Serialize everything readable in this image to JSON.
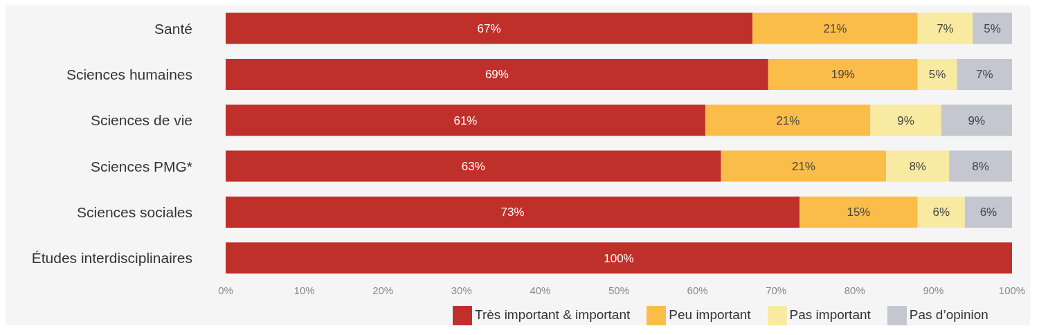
{
  "chart_data": {
    "type": "bar",
    "orientation": "horizontal",
    "stacked": true,
    "categories": [
      "Santé",
      "Sciences humaines",
      "Sciences de vie",
      "Sciences PMG*",
      "Sciences sociales",
      "Études interdisciplinaires"
    ],
    "series": [
      {
        "name": "Très important & important",
        "color": "#c0302a",
        "values": [
          67,
          69,
          61,
          63,
          73,
          100
        ],
        "value_labels": [
          "67%",
          "69%",
          "61%",
          "63%",
          "73%",
          "100%"
        ]
      },
      {
        "name": "Peu important",
        "color": "#fbbd4a",
        "values": [
          21,
          19,
          21,
          21,
          15,
          null
        ],
        "value_labels": [
          "21%",
          "19%",
          "21%",
          "21%",
          "15%",
          null
        ]
      },
      {
        "name": "Pas important",
        "color": "#f9eaa2",
        "values": [
          7,
          5,
          9,
          8,
          6,
          null
        ],
        "value_labels": [
          "7%",
          "5%",
          "9%",
          "8%",
          "6%",
          null
        ]
      },
      {
        "name": "Pas d’opinion",
        "color": "#c4c6d0",
        "values": [
          5,
          7,
          9,
          8,
          6,
          null
        ],
        "value_labels": [
          "5%",
          "7%",
          "9%",
          "8%",
          "6%",
          null
        ]
      }
    ],
    "xlim": [
      0,
      100
    ],
    "xticks": [
      {
        "value": 0,
        "label": "0%"
      },
      {
        "value": 10,
        "label": "10%"
      },
      {
        "value": 20,
        "label": "20%"
      },
      {
        "value": 30,
        "label": "30%"
      },
      {
        "value": 40,
        "label": "40%"
      },
      {
        "value": 50,
        "label": "50%"
      },
      {
        "value": 60,
        "label": "60%"
      },
      {
        "value": 70,
        "label": "70%"
      },
      {
        "value": 80,
        "label": "80%"
      },
      {
        "value": 90,
        "label": "90%"
      },
      {
        "value": 100,
        "label": "100%"
      }
    ],
    "grid": false,
    "legend": "bottom"
  }
}
